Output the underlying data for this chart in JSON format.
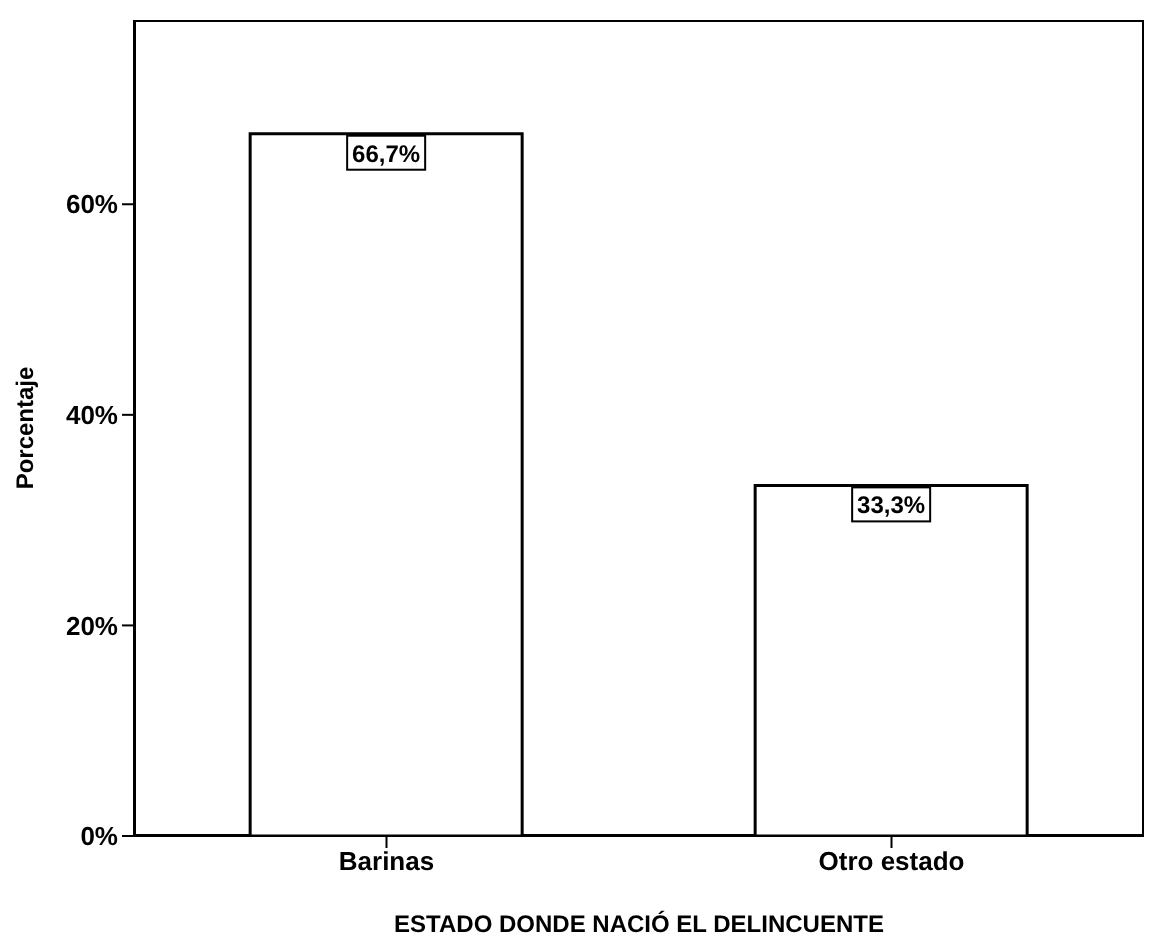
{
  "chart_data": {
    "type": "bar",
    "xlabel": "ESTADO DONDE NACIÓ EL DELINCUENTE",
    "ylabel": "Porcentaje",
    "categories": [
      "Barinas",
      "Otro estado"
    ],
    "values": [
      66.7,
      33.3
    ],
    "color": "#ffffff",
    "value_labels": [
      "66,7%",
      "33,3%"
    ],
    "ylim": [
      0,
      77.5
    ],
    "yticks": [
      {
        "value": 0,
        "label": "0%"
      },
      {
        "value": 20,
        "label": "20%"
      },
      {
        "value": 40,
        "label": "40%"
      },
      {
        "value": 60,
        "label": "60%"
      }
    ],
    "legend": false
  }
}
